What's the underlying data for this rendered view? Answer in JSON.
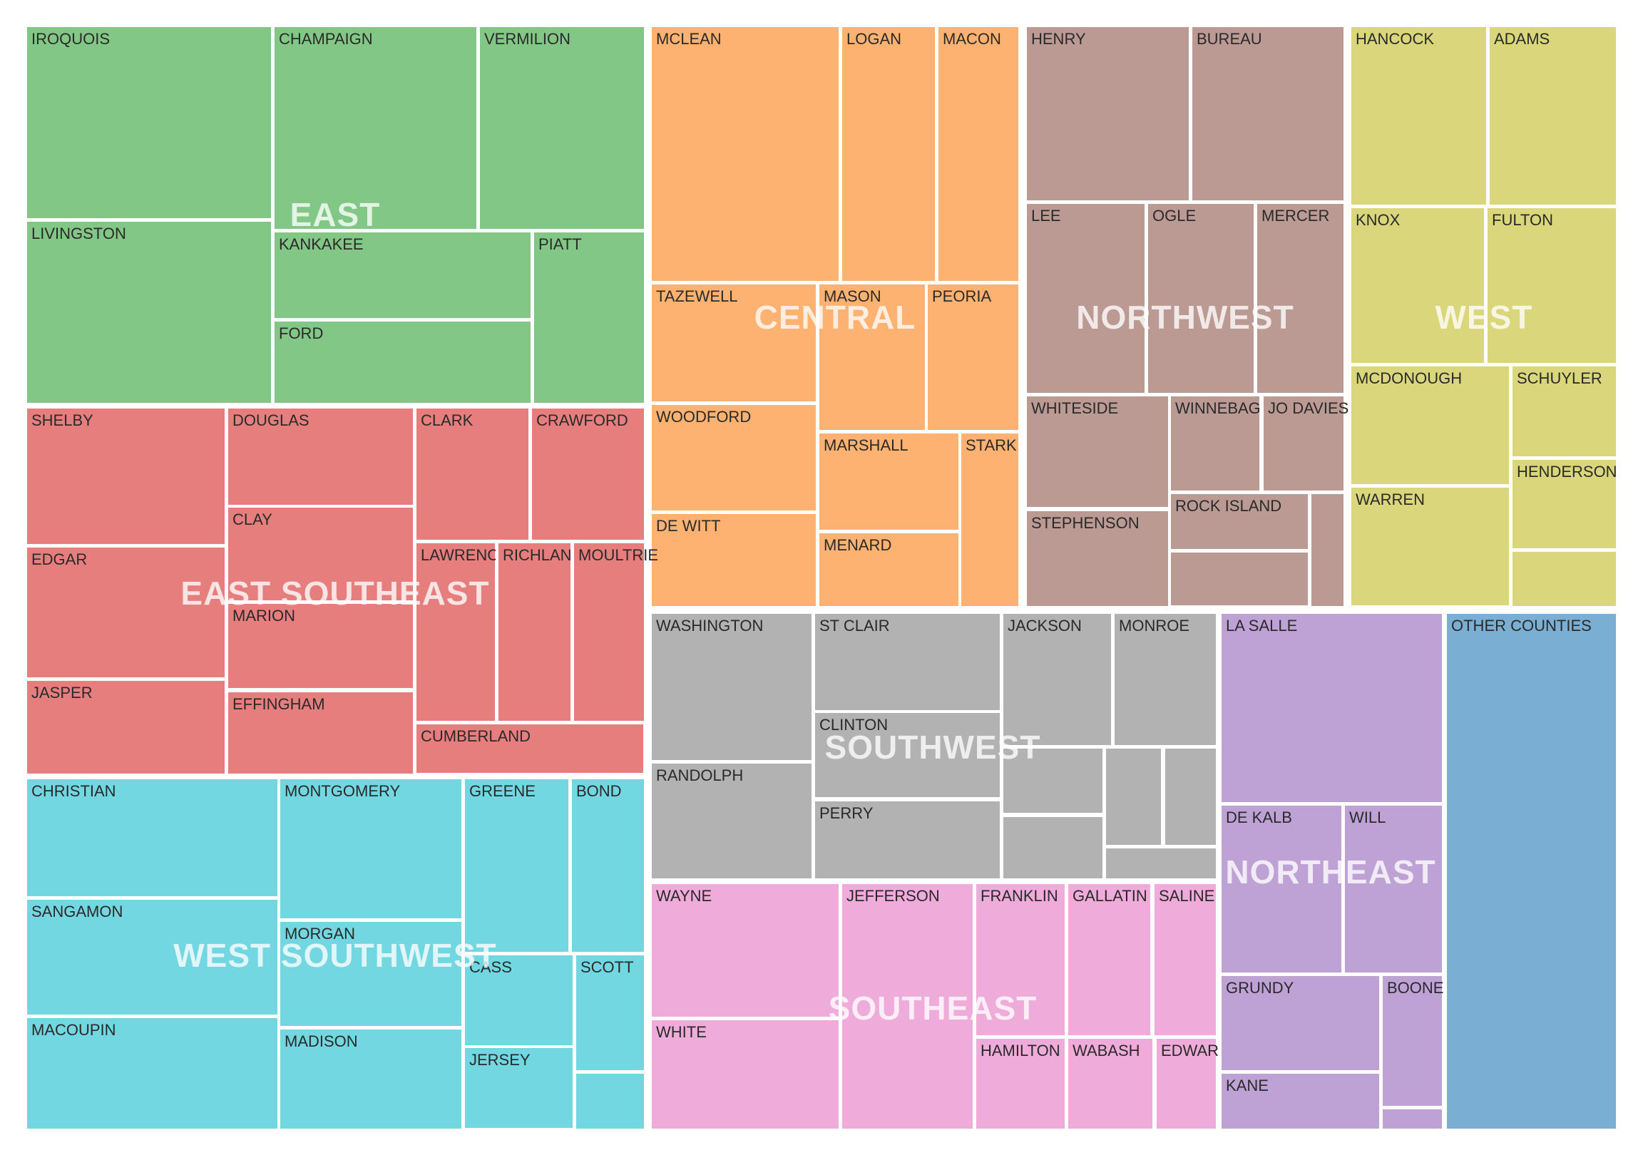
{
  "chart_data": {
    "type": "treemap",
    "title": "",
    "regions": [
      {
        "name": "EAST",
        "color": "#82c785",
        "counties": [
          "IROQUOIS",
          "CHAMPAIGN",
          "VERMILION",
          "LIVINGSTON",
          "KANKAKEE",
          "PIATT",
          "FORD"
        ]
      },
      {
        "name": "CENTRAL",
        "color": "#feb271",
        "counties": [
          "MCLEAN",
          "LOGAN",
          "MACON",
          "TAZEWELL",
          "MASON",
          "PEORIA",
          "WOODFORD",
          "MARSHALL",
          "STARK",
          "DE WITT",
          "MENARD"
        ]
      },
      {
        "name": "NORTHWEST",
        "color": "#bb9a94",
        "counties": [
          "HENRY",
          "BUREAU",
          "LEE",
          "OGLE",
          "MERCER",
          "WHITESIDE",
          "WINNEBAGO",
          "JO DAVIESS",
          "ROCK ISLAND",
          "STEPHENSON",
          "",
          ""
        ]
      },
      {
        "name": "WEST",
        "color": "#d9d67b",
        "counties": [
          "HANCOCK",
          "ADAMS",
          "KNOX",
          "FULTON",
          "MCDONOUGH",
          "SCHUYLER",
          "HENDERSON",
          "WARREN",
          ""
        ]
      },
      {
        "name": "EAST SOUTHEAST",
        "color": "#e67e7e",
        "counties": [
          "SHELBY",
          "DOUGLAS",
          "CLARK",
          "CRAWFORD",
          "CLAY",
          "EDGAR",
          "LAWRENCE",
          "RICHLAND",
          "MOULTRIE",
          "MARION",
          "JASPER",
          "EFFINGHAM",
          "CUMBERLAND"
        ]
      },
      {
        "name": "WEST SOUTHWEST",
        "color": "#72d7e1",
        "counties": [
          "CHRISTIAN",
          "MONTGOMERY",
          "GREENE",
          "BOND",
          "SANGAMON",
          "MORGAN",
          "CASS",
          "SCOTT",
          "MACOUPIN",
          "MADISON",
          "JERSEY",
          ""
        ]
      },
      {
        "name": "SOUTHWEST",
        "color": "#b2b2b2",
        "counties": [
          "WASHINGTON",
          "ST CLAIR",
          "JACKSON",
          "MONROE",
          "CLINTON",
          "RANDOLPH",
          "PERRY",
          "",
          "",
          "",
          "",
          ""
        ]
      },
      {
        "name": "SOUTHEAST",
        "color": "#efabd9",
        "counties": [
          "WAYNE",
          "JEFFERSON",
          "FRANKLIN",
          "GALLATIN",
          "SALINE",
          "WHITE",
          "HAMILTON",
          "WABASH",
          "EDWARDS",
          ""
        ]
      },
      {
        "name": "NORTHEAST",
        "color": "#bfa2d5",
        "counties": [
          "LA SALLE",
          "DE KALB",
          "WILL",
          "GRUNDY",
          "BOONE",
          "KANE",
          ""
        ]
      },
      {
        "name": "OTHER COUNTIES",
        "color": "#7aafd3",
        "counties": [
          "OTHER COUNTIES"
        ]
      }
    ]
  }
}
